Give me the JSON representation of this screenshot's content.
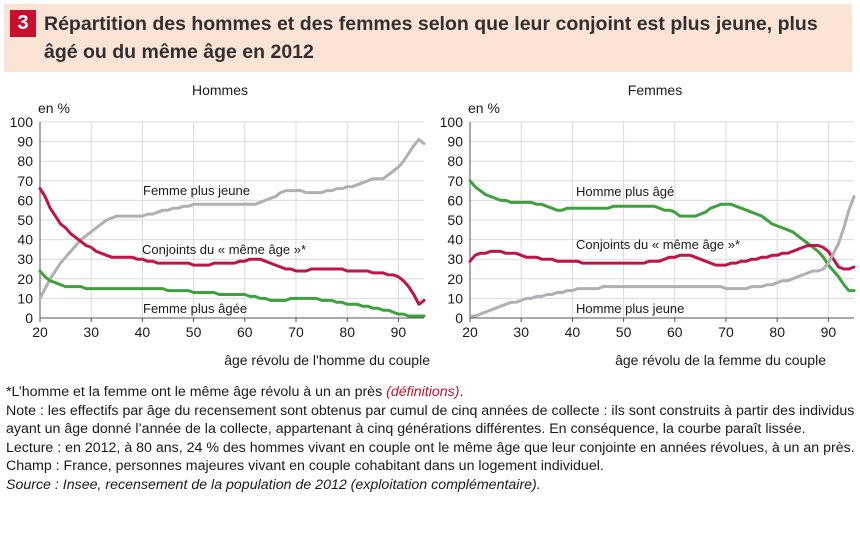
{
  "figure": {
    "number": "3",
    "title": "Répartition des hommes et des femmes selon que leur conjoint est plus jeune, plus âgé ou du même âge en 2012"
  },
  "chart_data": [
    {
      "type": "line",
      "title": "Hommes",
      "ylabel": "en %",
      "xlabel": "âge révolu de l'homme du couple",
      "xlim": [
        20,
        95
      ],
      "ylim": [
        0,
        100
      ],
      "xticks": [
        20,
        30,
        40,
        50,
        60,
        70,
        80,
        90
      ],
      "yticks": [
        0,
        10,
        20,
        30,
        40,
        50,
        60,
        70,
        80,
        90,
        100
      ],
      "grid": true,
      "series": [
        {
          "name": "Femme plus jeune",
          "color": "#b0b0b4",
          "x": [
            20,
            21,
            22,
            23,
            24,
            25,
            26,
            27,
            28,
            29,
            30,
            31,
            32,
            33,
            34,
            35,
            36,
            37,
            38,
            39,
            40,
            41,
            42,
            43,
            44,
            45,
            46,
            47,
            48,
            49,
            50,
            51,
            52,
            53,
            54,
            55,
            56,
            57,
            58,
            59,
            60,
            61,
            62,
            63,
            64,
            65,
            66,
            67,
            68,
            69,
            70,
            71,
            72,
            73,
            74,
            75,
            76,
            77,
            78,
            79,
            80,
            81,
            82,
            83,
            84,
            85,
            86,
            87,
            88,
            89,
            90,
            91,
            92,
            93,
            94,
            95
          ],
          "values": [
            10,
            15,
            20,
            24,
            28,
            31,
            34,
            37,
            40,
            42,
            44,
            46,
            48,
            50,
            51,
            52,
            52,
            52,
            52,
            52,
            52,
            53,
            53,
            54,
            55,
            55,
            56,
            56,
            57,
            57,
            58,
            58,
            58,
            58,
            58,
            58,
            58,
            58,
            58,
            58,
            58,
            58,
            58,
            59,
            60,
            61,
            62,
            64,
            65,
            65,
            65,
            65,
            64,
            64,
            64,
            64,
            65,
            65,
            66,
            66,
            67,
            67,
            68,
            69,
            70,
            71,
            71,
            71,
            73,
            75,
            77,
            80,
            84,
            88,
            91,
            89
          ]
        },
        {
          "name": "Conjoints du « même âge »*",
          "color": "#c0134a",
          "x": [
            20,
            21,
            22,
            23,
            24,
            25,
            26,
            27,
            28,
            29,
            30,
            31,
            32,
            33,
            34,
            35,
            36,
            37,
            38,
            39,
            40,
            41,
            42,
            43,
            44,
            45,
            46,
            47,
            48,
            49,
            50,
            51,
            52,
            53,
            54,
            55,
            56,
            57,
            58,
            59,
            60,
            61,
            62,
            63,
            64,
            65,
            66,
            67,
            68,
            69,
            70,
            71,
            72,
            73,
            74,
            75,
            76,
            77,
            78,
            79,
            80,
            81,
            82,
            83,
            84,
            85,
            86,
            87,
            88,
            89,
            90,
            91,
            92,
            93,
            94,
            95
          ],
          "values": [
            66,
            62,
            56,
            52,
            48,
            46,
            43,
            41,
            39,
            37,
            36,
            34,
            33,
            32,
            31,
            31,
            31,
            31,
            31,
            30,
            30,
            29,
            29,
            28,
            28,
            28,
            28,
            28,
            28,
            28,
            27,
            27,
            27,
            27,
            28,
            28,
            28,
            28,
            28,
            29,
            29,
            30,
            30,
            30,
            29,
            28,
            27,
            26,
            25,
            25,
            24,
            24,
            24,
            25,
            25,
            25,
            25,
            25,
            25,
            25,
            24,
            24,
            24,
            24,
            24,
            23,
            23,
            23,
            22,
            22,
            21,
            19,
            16,
            12,
            7,
            9
          ]
        },
        {
          "name": "Femme plus âgée",
          "color": "#3ea13e",
          "x": [
            20,
            21,
            22,
            23,
            24,
            25,
            26,
            27,
            28,
            29,
            30,
            31,
            32,
            33,
            34,
            35,
            36,
            37,
            38,
            39,
            40,
            41,
            42,
            43,
            44,
            45,
            46,
            47,
            48,
            49,
            50,
            51,
            52,
            53,
            54,
            55,
            56,
            57,
            58,
            59,
            60,
            61,
            62,
            63,
            64,
            65,
            66,
            67,
            68,
            69,
            70,
            71,
            72,
            73,
            74,
            75,
            76,
            77,
            78,
            79,
            80,
            81,
            82,
            83,
            84,
            85,
            86,
            87,
            88,
            89,
            90,
            91,
            92,
            93,
            94,
            95
          ],
          "values": [
            24,
            21,
            19,
            18,
            17,
            16,
            16,
            16,
            16,
            15,
            15,
            15,
            15,
            15,
            15,
            15,
            15,
            15,
            15,
            15,
            15,
            15,
            15,
            15,
            15,
            14,
            14,
            14,
            14,
            14,
            13,
            13,
            13,
            13,
            13,
            12,
            12,
            12,
            12,
            12,
            12,
            11,
            11,
            10,
            10,
            9,
            9,
            9,
            9,
            10,
            10,
            10,
            10,
            10,
            10,
            9,
            9,
            9,
            8,
            8,
            7,
            7,
            7,
            6,
            6,
            5,
            5,
            4,
            4,
            3,
            2,
            2,
            1,
            1,
            1,
            1
          ]
        }
      ],
      "labels": [
        "Femme plus jeune",
        "Conjoints du « même âge »*",
        "Femme plus âgée"
      ]
    },
    {
      "type": "line",
      "title": "Femmes",
      "ylabel": "en %",
      "xlabel": "âge révolu de la femme du couple",
      "xlim": [
        20,
        95
      ],
      "ylim": [
        0,
        100
      ],
      "xticks": [
        20,
        30,
        40,
        50,
        60,
        70,
        80,
        90
      ],
      "yticks": [
        0,
        10,
        20,
        30,
        40,
        50,
        60,
        70,
        80,
        90,
        100
      ],
      "grid": true,
      "series": [
        {
          "name": "Homme plus âgé",
          "color": "#3ea13e",
          "x": [
            20,
            21,
            22,
            23,
            24,
            25,
            26,
            27,
            28,
            29,
            30,
            31,
            32,
            33,
            34,
            35,
            36,
            37,
            38,
            39,
            40,
            41,
            42,
            43,
            44,
            45,
            46,
            47,
            48,
            49,
            50,
            51,
            52,
            53,
            54,
            55,
            56,
            57,
            58,
            59,
            60,
            61,
            62,
            63,
            64,
            65,
            66,
            67,
            68,
            69,
            70,
            71,
            72,
            73,
            74,
            75,
            76,
            77,
            78,
            79,
            80,
            81,
            82,
            83,
            84,
            85,
            86,
            87,
            88,
            89,
            90,
            91,
            92,
            93,
            94,
            95
          ],
          "values": [
            70,
            67,
            65,
            63,
            62,
            61,
            60,
            60,
            59,
            59,
            59,
            59,
            59,
            58,
            58,
            57,
            56,
            55,
            55,
            56,
            56,
            56,
            56,
            56,
            56,
            56,
            56,
            56,
            57,
            57,
            57,
            57,
            57,
            57,
            57,
            57,
            57,
            56,
            55,
            55,
            54,
            52,
            52,
            52,
            52,
            53,
            54,
            56,
            57,
            58,
            58,
            58,
            57,
            56,
            55,
            54,
            53,
            52,
            50,
            48,
            47,
            46,
            45,
            44,
            42,
            40,
            38,
            36,
            34,
            31,
            27,
            24,
            21,
            17,
            14,
            14
          ]
        },
        {
          "name": "Conjoints du « même âge »*",
          "color": "#c0134a",
          "x": [
            20,
            21,
            22,
            23,
            24,
            25,
            26,
            27,
            28,
            29,
            30,
            31,
            32,
            33,
            34,
            35,
            36,
            37,
            38,
            39,
            40,
            41,
            42,
            43,
            44,
            45,
            46,
            47,
            48,
            49,
            50,
            51,
            52,
            53,
            54,
            55,
            56,
            57,
            58,
            59,
            60,
            61,
            62,
            63,
            64,
            65,
            66,
            67,
            68,
            69,
            70,
            71,
            72,
            73,
            74,
            75,
            76,
            77,
            78,
            79,
            80,
            81,
            82,
            83,
            84,
            85,
            86,
            87,
            88,
            89,
            90,
            91,
            92,
            93,
            94,
            95
          ],
          "values": [
            29,
            32,
            33,
            33,
            34,
            34,
            34,
            33,
            33,
            33,
            32,
            31,
            31,
            31,
            30,
            30,
            30,
            29,
            29,
            29,
            29,
            29,
            28,
            28,
            28,
            28,
            28,
            28,
            28,
            28,
            28,
            28,
            28,
            28,
            28,
            29,
            29,
            29,
            30,
            31,
            31,
            32,
            32,
            32,
            31,
            30,
            29,
            28,
            27,
            27,
            27,
            28,
            28,
            29,
            29,
            30,
            30,
            31,
            31,
            32,
            32,
            33,
            33,
            34,
            35,
            36,
            37,
            37,
            37,
            36,
            34,
            30,
            26,
            25,
            25,
            26
          ]
        },
        {
          "name": "Homme plus jeune",
          "color": "#b0b0b4",
          "x": [
            20,
            21,
            22,
            23,
            24,
            25,
            26,
            27,
            28,
            29,
            30,
            31,
            32,
            33,
            34,
            35,
            36,
            37,
            38,
            39,
            40,
            41,
            42,
            43,
            44,
            45,
            46,
            47,
            48,
            49,
            50,
            51,
            52,
            53,
            54,
            55,
            56,
            57,
            58,
            59,
            60,
            61,
            62,
            63,
            64,
            65,
            66,
            67,
            68,
            69,
            70,
            71,
            72,
            73,
            74,
            75,
            76,
            77,
            78,
            79,
            80,
            81,
            82,
            83,
            84,
            85,
            86,
            87,
            88,
            89,
            90,
            91,
            92,
            93,
            94,
            95
          ],
          "values": [
            1,
            1,
            2,
            3,
            4,
            5,
            6,
            7,
            8,
            8,
            9,
            10,
            10,
            11,
            11,
            12,
            12,
            13,
            13,
            14,
            14,
            15,
            15,
            15,
            15,
            15,
            16,
            16,
            16,
            16,
            16,
            16,
            16,
            16,
            16,
            16,
            16,
            16,
            16,
            16,
            16,
            16,
            16,
            16,
            16,
            16,
            16,
            16,
            16,
            16,
            15,
            15,
            15,
            15,
            15,
            16,
            16,
            16,
            17,
            17,
            18,
            19,
            19,
            20,
            21,
            22,
            23,
            24,
            24,
            25,
            28,
            33,
            38,
            46,
            55,
            62
          ]
        }
      ],
      "labels": [
        "Homme plus âgé",
        "Conjoints du « même âge »*",
        "Homme plus jeune"
      ]
    }
  ],
  "notes": {
    "footnote_main": "*L’homme et la femme ont le même âge révolu à un an près ",
    "footnote_link": "(définitions)",
    "footnote_end": ".",
    "note": "Note : les effectifs par âge du recensement sont obtenus par cumul de cinq années de collecte : ils sont construits à partir des individus ayant un âge donné l’année de la collecte, appartenant à cinq générations différentes. En conséquence, la courbe paraît lissée.",
    "lecture": "Lecture : en 2012, à 80 ans, 24 % des hommes vivant en couple ont le même âge que leur conjointe en années révolues, à un an près.",
    "champ": "Champ : France, personnes majeures vivant en couple cohabitant dans un logement individuel.",
    "source": "Source : Insee, recensement de la population de 2012 (exploitation complémentaire)."
  }
}
